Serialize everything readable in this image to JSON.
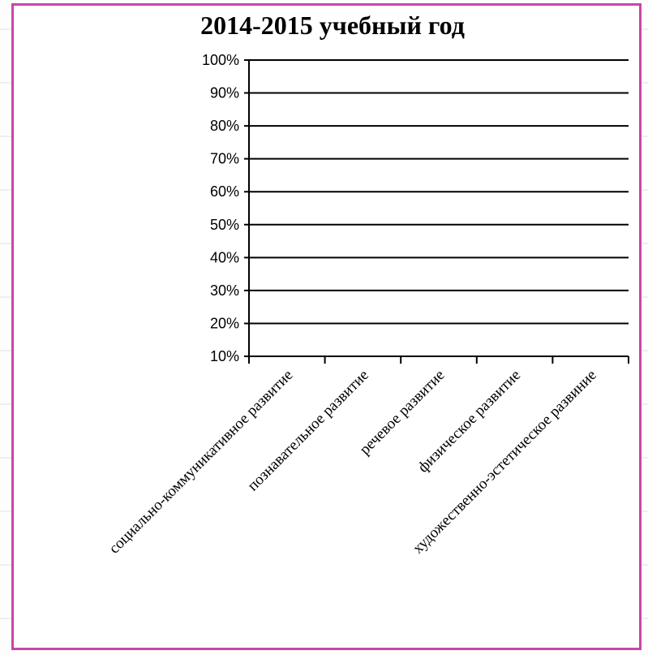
{
  "colors": {
    "frame": "#c846a8",
    "grid": "#000000",
    "text": "#000000",
    "page_lines": "#eadbe6"
  },
  "chart_data": {
    "type": "bar",
    "title": "2014-2015 учебный год",
    "xlabel": "",
    "ylabel": "",
    "ylim": [
      0.1,
      1.0
    ],
    "yticks": [
      "100%",
      "90%",
      "80%",
      "70%",
      "60%",
      "50%",
      "40%",
      "30%",
      "20%",
      "10%"
    ],
    "grid": true,
    "legend": "none",
    "categories": [
      "социально-коммуникативное развитие",
      "познавательное развитие",
      "речевое развитие",
      "физическое развитие",
      "художественно-эстетическое развиние"
    ],
    "series": []
  }
}
